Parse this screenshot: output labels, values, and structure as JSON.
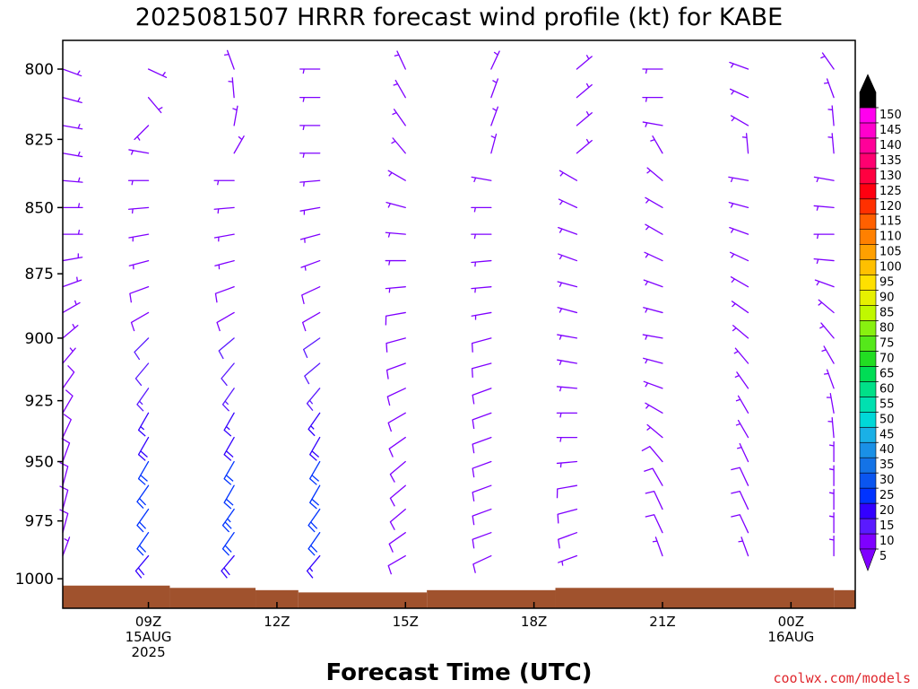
{
  "chart_data": {
    "type": "wind_barb_time_height",
    "title": "2025081507 HRRR forecast wind profile (kt) for KABE",
    "xlabel": "Forecast Time (UTC)",
    "ylabel": "",
    "credit": "coolwx.com/models",
    "y_scale": "log_pressure",
    "ylim": [
      1013,
      790
    ],
    "y_ticks": [
      "800",
      "825",
      "850",
      "875",
      "900",
      "925",
      "950",
      "975",
      "1000"
    ],
    "y_tick_values": [
      800,
      825,
      850,
      875,
      900,
      925,
      950,
      975,
      1000
    ],
    "xlim": [
      7,
      25.5
    ],
    "x_ticks": [
      {
        "hour": 9,
        "lines": [
          "09Z",
          "15AUG",
          "2025"
        ]
      },
      {
        "hour": 12,
        "lines": [
          "12Z"
        ]
      },
      {
        "hour": 15,
        "lines": [
          "15Z"
        ]
      },
      {
        "hour": 18,
        "lines": [
          "18Z"
        ]
      },
      {
        "hour": 21,
        "lines": [
          "21Z"
        ]
      },
      {
        "hour": 24,
        "lines": [
          "00Z",
          "16AUG"
        ]
      }
    ],
    "barb_levels": [
      790,
      800,
      810,
      820,
      830,
      840,
      850,
      860,
      870,
      880,
      890,
      900,
      910,
      920,
      930,
      940,
      950,
      960,
      970,
      980,
      990
    ],
    "profiles": [
      {
        "hour": 7,
        "dir": [
          120,
          110,
          105,
          100,
          100,
          95,
          90,
          90,
          80,
          70,
          60,
          50,
          40,
          35,
          30,
          25,
          20,
          15,
          15,
          15,
          20
        ],
        "speed": [
          3,
          3,
          4,
          4,
          4,
          5,
          5,
          5,
          5,
          6,
          6,
          7,
          7,
          8,
          8,
          9,
          9,
          9,
          9,
          8,
          6
        ]
      },
      {
        "hour": 9,
        "dir": [
          110,
          115,
          140,
          225,
          280,
          270,
          265,
          260,
          255,
          250,
          240,
          225,
          220,
          215,
          210,
          210,
          210,
          215,
          215,
          215,
          220
        ],
        "speed": [
          3,
          3,
          3,
          3,
          4,
          5,
          6,
          7,
          7,
          8,
          9,
          10,
          12,
          14,
          16,
          18,
          20,
          21,
          22,
          22,
          18
        ]
      },
      {
        "hour": 11,
        "dir": [
          320,
          340,
          355,
          10,
          30,
          270,
          265,
          260,
          255,
          250,
          240,
          230,
          220,
          215,
          210,
          210,
          210,
          210,
          215,
          215,
          220
        ],
        "speed": [
          3,
          3,
          3,
          3,
          3,
          4,
          5,
          6,
          7,
          8,
          9,
          10,
          12,
          14,
          17,
          19,
          21,
          22,
          23,
          22,
          18
        ]
      },
      {
        "hour": 13,
        "dir": [
          270,
          270,
          270,
          270,
          270,
          265,
          260,
          255,
          250,
          245,
          240,
          235,
          230,
          220,
          215,
          210,
          210,
          210,
          215,
          215,
          220
        ],
        "speed": [
          3,
          3,
          3,
          3,
          4,
          5,
          6,
          7,
          7,
          8,
          9,
          10,
          12,
          14,
          16,
          18,
          20,
          21,
          22,
          20,
          15
        ]
      },
      {
        "hour": 15,
        "dir": [
          340,
          335,
          330,
          325,
          320,
          300,
          285,
          275,
          270,
          265,
          260,
          255,
          250,
          245,
          240,
          235,
          230,
          230,
          230,
          235,
          240
        ],
        "speed": [
          3,
          3,
          3,
          3,
          3,
          3,
          4,
          5,
          6,
          7,
          8,
          8,
          8,
          8,
          8,
          9,
          9,
          9,
          9,
          9,
          8
        ]
      },
      {
        "hour": 17,
        "dir": [
          30,
          25,
          20,
          20,
          15,
          280,
          270,
          270,
          265,
          265,
          260,
          255,
          255,
          250,
          250,
          250,
          250,
          250,
          250,
          250,
          245
        ],
        "speed": [
          3,
          3,
          3,
          3,
          3,
          5,
          6,
          6,
          7,
          7,
          7,
          8,
          8,
          8,
          8,
          8,
          9,
          9,
          9,
          9,
          8
        ]
      },
      {
        "hour": 19,
        "dir": [
          55,
          50,
          50,
          50,
          50,
          300,
          295,
          290,
          290,
          285,
          285,
          280,
          280,
          275,
          270,
          270,
          265,
          260,
          255,
          250,
          250
        ],
        "speed": [
          3,
          3,
          3,
          3,
          3,
          3,
          4,
          4,
          5,
          5,
          5,
          6,
          6,
          6,
          7,
          7,
          7,
          8,
          8,
          8,
          7
        ]
      },
      {
        "hour": 21,
        "dir": [
          270,
          270,
          270,
          280,
          330,
          310,
          300,
          300,
          295,
          290,
          285,
          280,
          285,
          290,
          300,
          310,
          320,
          330,
          335,
          335,
          340
        ],
        "speed": [
          3,
          3,
          3,
          3,
          3,
          3,
          4,
          4,
          4,
          5,
          5,
          5,
          6,
          6,
          7,
          7,
          8,
          8,
          8,
          8,
          7
        ]
      },
      {
        "hour": 23,
        "dir": [
          290,
          290,
          295,
          300,
          355,
          280,
          285,
          290,
          295,
          300,
          305,
          310,
          320,
          325,
          330,
          330,
          335,
          335,
          335,
          335,
          340
        ],
        "speed": [
          3,
          3,
          3,
          3,
          3,
          3,
          3,
          4,
          4,
          5,
          5,
          6,
          6,
          6,
          7,
          7,
          7,
          8,
          8,
          8,
          7
        ]
      },
      {
        "hour": 25,
        "dir": [
          315,
          325,
          340,
          355,
          355,
          280,
          275,
          270,
          275,
          290,
          310,
          320,
          330,
          340,
          350,
          355,
          0,
          0,
          0,
          0,
          0
        ],
        "speed": [
          3,
          3,
          3,
          3,
          3,
          3,
          3,
          3,
          3,
          3,
          4,
          5,
          5,
          6,
          6,
          6,
          6,
          6,
          6,
          6,
          6
        ]
      }
    ],
    "surface_pressure": [
      {
        "start": 7,
        "end": 9.5,
        "p": 1003
      },
      {
        "start": 9.5,
        "end": 11.5,
        "p": 1004
      },
      {
        "start": 11.5,
        "end": 12.5,
        "p": 1005
      },
      {
        "start": 12.5,
        "end": 15.5,
        "p": 1006
      },
      {
        "start": 15.5,
        "end": 18.5,
        "p": 1005
      },
      {
        "start": 18.5,
        "end": 25,
        "p": 1004
      },
      {
        "start": 25,
        "end": 25.5,
        "p": 1005
      }
    ],
    "colorbar": {
      "labels": [
        "5",
        "10",
        "15",
        "20",
        "25",
        "30",
        "35",
        "40",
        "45",
        "50",
        "55",
        "60",
        "65",
        "70",
        "75",
        "80",
        "85",
        "90",
        "95",
        "100",
        "105",
        "110",
        "115",
        "120",
        "125",
        "130",
        "135",
        "140",
        "145",
        "150"
      ],
      "values": [
        5,
        10,
        15,
        20,
        25,
        30,
        35,
        40,
        45,
        50,
        55,
        60,
        65,
        70,
        75,
        80,
        85,
        90,
        95,
        100,
        105,
        110,
        115,
        120,
        125,
        130,
        135,
        140,
        145,
        150
      ],
      "colors": [
        "#7f00ff",
        "#5a1aff",
        "#3300ff",
        "#0033ff",
        "#0a55f0",
        "#1473e6",
        "#1a90e6",
        "#1ab0e6",
        "#00d8d8",
        "#00e0b0",
        "#00e088",
        "#00dd55",
        "#22dd22",
        "#55e81a",
        "#88f010",
        "#c0f800",
        "#e6f000",
        "#ffe000",
        "#ffc000",
        "#ffa000",
        "#ff8000",
        "#ff6000",
        "#ff3000",
        "#ff0010",
        "#ff0040",
        "#ff0070",
        "#ff0099",
        "#ff00cc",
        "#ff00ee",
        "#000000"
      ],
      "low_color": "#7f00ff",
      "high_color": "#000000"
    },
    "surface_color": "#a0522d",
    "grid": false
  }
}
